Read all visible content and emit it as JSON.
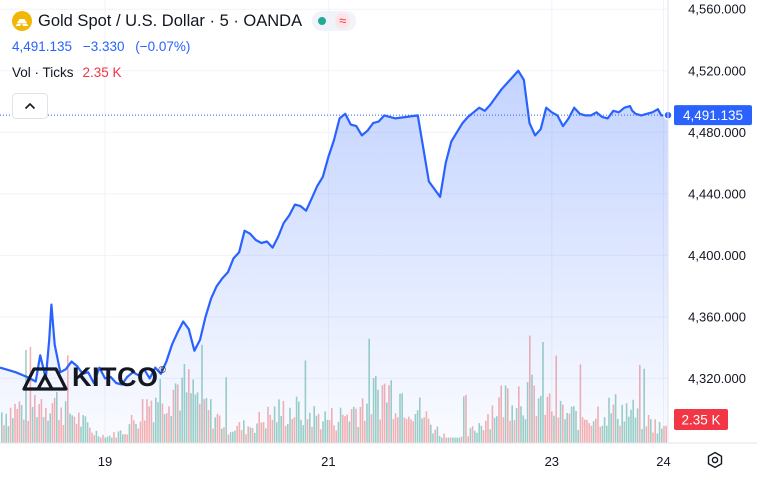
{
  "header": {
    "symbol_title": "Gold Spot / U.S. Dollar · 5 · OANDA",
    "symbol_icon": "gold-bars-icon",
    "status_icon": "market-open-dot-icon",
    "data_icon": "delayed-data-wave-icon"
  },
  "quote": {
    "last": "4,491.135",
    "change": "−3.330",
    "change_pct": "(−0.07%)"
  },
  "volume": {
    "label": "Vol · Ticks",
    "value": "2.35 K"
  },
  "watermark": {
    "text": "KITCO",
    "mark": "®"
  },
  "colors": {
    "price_line": "#2962ff",
    "volume_up": "#8cc9bd",
    "volume_down": "#f4a5a5",
    "label_red": "#f23645"
  },
  "chart_data": {
    "type": "area",
    "x_tick_labels": [
      "19",
      "21",
      "23",
      "24"
    ],
    "y_tick_labels": [
      "4,560.000",
      "4,520.000",
      "4,480.000",
      "4,440.000",
      "4,400.000",
      "4,360.000",
      "4,320.000"
    ],
    "ylim": [
      4278,
      4566
    ],
    "x_domain": [
      18.06,
      24.04
    ],
    "last_price": 4491.135,
    "last_price_label": "4,491.135",
    "volume_label": "2.35 K",
    "volume_max": 2.35,
    "grid": true,
    "series": [
      {
        "x": [
          18.06,
          18.2,
          18.3,
          18.38,
          18.42,
          18.47,
          18.5,
          18.52,
          18.55,
          18.6,
          18.65,
          18.7,
          18.75,
          18.8,
          18.85,
          18.9,
          18.95,
          19.0,
          19.05,
          19.1,
          19.15,
          19.2,
          19.25,
          19.3,
          19.35,
          19.4,
          19.45,
          19.5,
          19.55,
          19.6,
          19.65,
          19.7,
          19.75,
          19.8,
          19.85,
          19.9,
          19.95,
          20.0,
          20.05,
          20.1,
          20.15,
          20.2,
          20.25,
          20.3,
          20.35,
          20.4,
          20.45,
          20.5,
          20.55,
          20.6,
          20.65,
          20.7,
          20.75,
          20.8,
          20.85,
          20.9,
          20.95,
          21.0,
          21.05,
          21.1,
          21.15,
          21.2,
          21.25,
          21.3,
          21.35,
          21.4,
          21.45,
          21.5,
          21.6,
          21.7,
          21.8,
          21.9,
          22.0,
          22.05,
          22.1,
          22.15,
          22.2,
          22.25,
          22.3,
          22.35,
          22.4,
          22.45,
          22.5,
          22.55,
          22.6,
          22.7,
          22.75,
          22.8,
          22.85,
          22.9,
          22.95,
          23.0,
          23.05,
          23.1,
          23.15,
          23.2,
          23.25,
          23.3,
          23.35,
          23.4,
          23.45,
          23.5,
          23.55,
          23.6,
          23.65,
          23.7,
          23.72,
          23.75,
          23.8,
          23.85,
          23.9,
          23.95,
          23.98,
          24.0,
          24.02,
          24.04
        ],
        "values": [
          4327,
          4324,
          4321,
          4318,
          4335,
          4320,
          4345,
          4368,
          4342,
          4324,
          4326,
          4331,
          4328,
          4323,
          4324,
          4317,
          4327,
          4320,
          4321,
          4317,
          4316,
          4321,
          4324,
          4322,
          4326,
          4320,
          4327,
          4323,
          4331,
          4342,
          4350,
          4357,
          4352,
          4338,
          4345,
          4360,
          4372,
          4380,
          4385,
          4389,
          4398,
          4402,
          4416,
          4414,
          4410,
          4408,
          4409,
          4405,
          4412,
          4421,
          4426,
          4433,
          4432,
          4429,
          4437,
          4445,
          4451,
          4464,
          4475,
          4489,
          4492,
          4485,
          4484,
          4478,
          4481,
          4486,
          4487,
          4491,
          4489,
          4490,
          4491,
          4448,
          4438,
          4460,
          4474,
          4480,
          4486,
          4490,
          4493,
          4496,
          4494,
          4498,
          4503,
          4508,
          4512,
          4520,
          4514,
          4486,
          4478,
          4482,
          4496,
          4493,
          4491,
          4484,
          4489,
          4496,
          4492,
          4491,
          4491,
          4493,
          4490,
          4489,
          4494,
          4493,
          4496,
          4497,
          4494,
          4492,
          4491,
          4492,
          4493,
          4495,
          4491,
          4491,
          4491,
          4491
        ]
      }
    ]
  }
}
